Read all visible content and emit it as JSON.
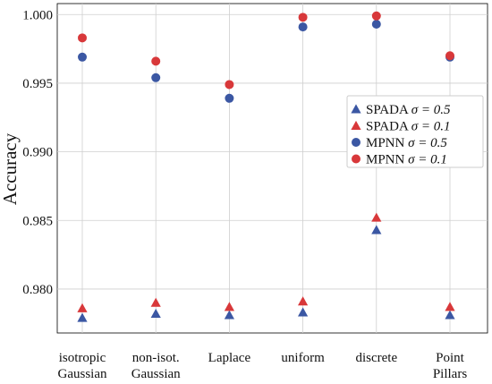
{
  "chart_data": {
    "type": "scatter",
    "title": "",
    "xlabel": "",
    "ylabel": "Accuracy",
    "ylim": [
      0.9768,
      1.0008
    ],
    "yticks": [
      "0.980",
      "0.985",
      "0.990",
      "0.995",
      "1.000"
    ],
    "grid": true,
    "legend_position": "right",
    "categories": [
      [
        "isotropic",
        "Gaussian"
      ],
      [
        "non-isot.",
        "Gaussian"
      ],
      [
        "Laplace"
      ],
      [
        "uniform"
      ],
      [
        "discrete"
      ],
      [
        "Point",
        "Pillars"
      ]
    ],
    "series": [
      {
        "name": "SPADA σ = 0.5",
        "legend_name": "SPADA",
        "legend_sigma": "σ = 0.5",
        "marker": "triangle",
        "color": "#3b57a3",
        "values": [
          0.9779,
          0.9782,
          0.9781,
          0.9783,
          0.9843,
          0.9781
        ]
      },
      {
        "name": "SPADA σ = 0.1",
        "legend_name": "SPADA",
        "legend_sigma": "σ = 0.1",
        "marker": "triangle",
        "color": "#d8383a",
        "values": [
          0.9786,
          0.979,
          0.9787,
          0.9791,
          0.9852,
          0.9787
        ]
      },
      {
        "name": "MPNN σ = 0.5",
        "legend_name": "MPNN",
        "legend_sigma": "σ = 0.5",
        "marker": "circle",
        "color": "#3b57a3",
        "values": [
          0.9969,
          0.9954,
          0.9939,
          0.9991,
          0.9993,
          0.9969
        ]
      },
      {
        "name": "MPNN σ = 0.1",
        "legend_name": "MPNN",
        "legend_sigma": "σ = 0.1",
        "marker": "circle",
        "color": "#d8383a",
        "values": [
          0.9983,
          0.9966,
          0.9949,
          0.9998,
          0.9999,
          0.997
        ]
      }
    ]
  }
}
